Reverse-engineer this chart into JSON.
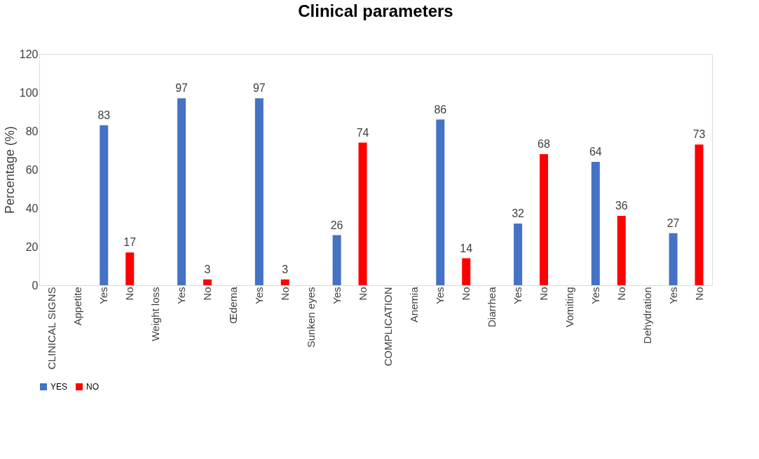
{
  "chart_data": {
    "type": "bar",
    "title": "Clinical parameters",
    "ylabel": "Percentage (%)",
    "categories": [
      "CLINICAL SIGNS",
      "Appetite",
      "Yes",
      "No",
      "Weight loss",
      "Yes",
      "No",
      "Œdema",
      "Yes",
      "No",
      "Sunken eyes",
      "Yes",
      "No",
      "COMPLICATION",
      "Anemia",
      "Yes",
      "No",
      "Diarrhea",
      "Yes",
      "No",
      "Vomiting",
      "Yes",
      "No",
      "Dehydration",
      "Yes",
      "No"
    ],
    "series": [
      {
        "name": "YES",
        "color": "#4472c4",
        "values": [
          null,
          null,
          83,
          null,
          null,
          97,
          null,
          null,
          97,
          null,
          null,
          26,
          null,
          null,
          null,
          86,
          null,
          null,
          32,
          null,
          null,
          64,
          null,
          null,
          27,
          null
        ]
      },
      {
        "name": "NO",
        "color": "#ff0000",
        "values": [
          null,
          null,
          null,
          17,
          null,
          null,
          3,
          null,
          null,
          3,
          null,
          null,
          74,
          null,
          null,
          null,
          14,
          null,
          null,
          68,
          null,
          null,
          36,
          null,
          null,
          73
        ]
      }
    ],
    "ylim": [
      0,
      120
    ],
    "yticks": [
      0,
      20,
      40,
      60,
      80,
      100,
      120
    ],
    "data_labels": true,
    "legend": "bottom",
    "grid": false
  }
}
